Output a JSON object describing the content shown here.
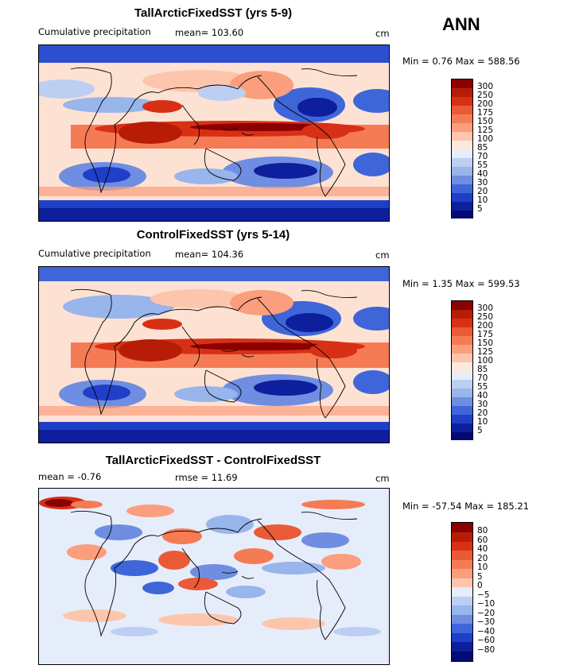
{
  "season": "ANN",
  "panels": [
    {
      "title": "TallArcticFixedSST (yrs 5-9)",
      "left_label": "Cumulative precipitation",
      "mid_label": "mean=  103.60",
      "units": "cm",
      "minmax": "Min =    0.76  Max =  588.56",
      "legend_labels": [
        "300",
        "250",
        "200",
        "175",
        "150",
        "125",
        "100",
        "85",
        "70",
        "55",
        "40",
        "30",
        "20",
        "10",
        "5"
      ],
      "legend_colors": [
        "#8b0000",
        "#b71d06",
        "#d73015",
        "#ea5a37",
        "#f57b55",
        "#fb9e7d",
        "#fdc6ac",
        "#fde8dc",
        "#e6edfa",
        "#bccff2",
        "#98b5ec",
        "#6f8ee2",
        "#3f66d8",
        "#1f3fc9",
        "#0d1f9c",
        "#030a73"
      ]
    },
    {
      "title": "ControlFixedSST (yrs 5-14)",
      "left_label": "Cumulative precipitation",
      "mid_label": "mean=  104.36",
      "units": "cm",
      "minmax": "Min =    1.35  Max =  599.53",
      "legend_labels": [
        "300",
        "250",
        "200",
        "175",
        "150",
        "125",
        "100",
        "85",
        "70",
        "55",
        "40",
        "30",
        "20",
        "10",
        "5"
      ],
      "legend_colors": [
        "#8b0000",
        "#b71d06",
        "#d73015",
        "#ea5a37",
        "#f57b55",
        "#fb9e7d",
        "#fdc6ac",
        "#fde8dc",
        "#e6edfa",
        "#bccff2",
        "#98b5ec",
        "#6f8ee2",
        "#3f66d8",
        "#1f3fc9",
        "#0d1f9c",
        "#030a73"
      ]
    },
    {
      "title": "TallArcticFixedSST - ControlFixedSST",
      "left_label": "mean =   -0.76",
      "mid_label": "rmse =   11.69",
      "units": "cm",
      "minmax": "Min = -57.54  Max =  185.21",
      "legend_labels": [
        "80",
        "60",
        "40",
        "20",
        "10",
        "5",
        "0",
        "−5",
        "−10",
        "−20",
        "−30",
        "−40",
        "−60",
        "−80"
      ],
      "legend_colors": [
        "#8b0000",
        "#b71d06",
        "#d73015",
        "#ea5a37",
        "#f57b55",
        "#fb9e7d",
        "#fdc6ac",
        "#e6edfa",
        "#bccff2",
        "#98b5ec",
        "#6f8ee2",
        "#3f66d8",
        "#1f3fc9",
        "#0d1f9c",
        "#030a73"
      ]
    }
  ]
}
